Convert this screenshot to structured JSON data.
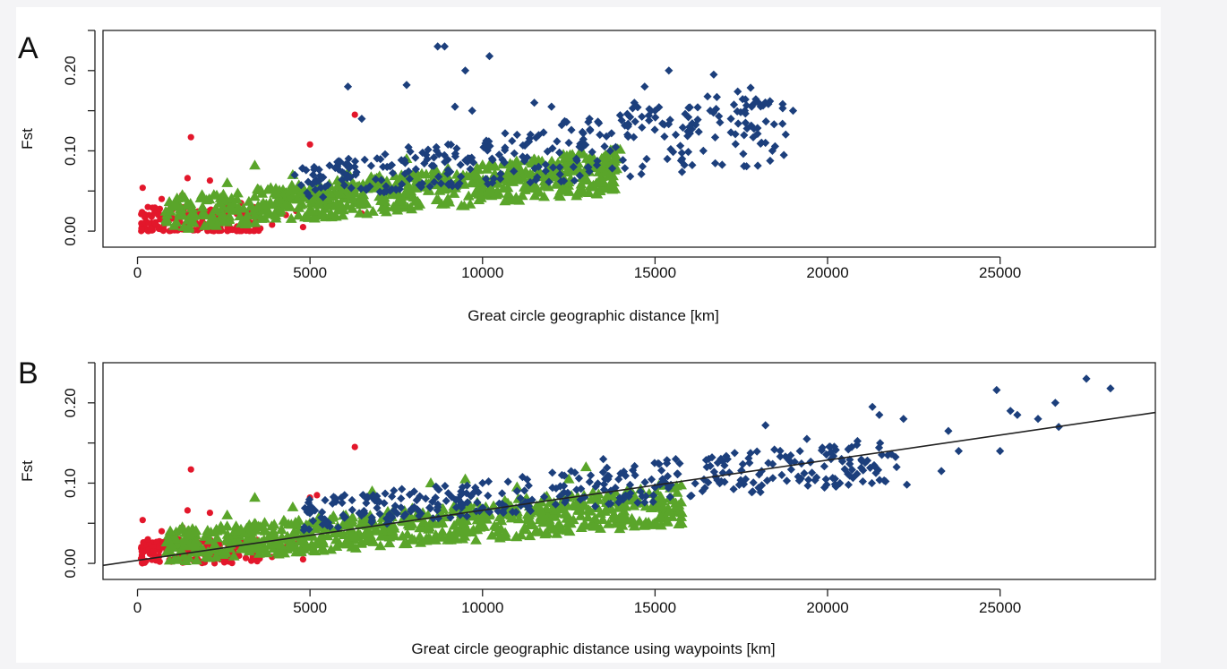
{
  "colors": {
    "red_group": "#e3172b",
    "green_group": "#5aa52a",
    "blue_group": "#1c3f7c",
    "regression_line": "#222222",
    "background": "#ffffff"
  },
  "chart_data": [
    {
      "type": "scatter",
      "panel_label": "A",
      "title": "",
      "xlabel": "Great circle geographic distance [km]",
      "ylabel": "Fst",
      "xlim": [
        -1000,
        29500
      ],
      "ylim": [
        -0.02,
        0.25
      ],
      "xticks": [
        0,
        5000,
        10000,
        15000,
        20000,
        25000
      ],
      "yticks": [
        0.0,
        0.1,
        0.2
      ],
      "xtick_labels": [
        "0",
        "5000",
        "10000",
        "15000",
        "20000",
        "25000"
      ],
      "ytick_labels": [
        "0.00",
        "0.10",
        "0.20"
      ],
      "grid": false,
      "regression": null,
      "series": [
        {
          "name": "red",
          "marker": "circle",
          "color": "#e3172b",
          "points": [
            [
              150,
              0.054
            ],
            [
              300,
              0.03
            ],
            [
              500,
              0.01
            ],
            [
              700,
              0.04
            ],
            [
              900,
              0.02
            ],
            [
              1100,
              0.035
            ],
            [
              1300,
              0.045
            ],
            [
              1450,
              0.066
            ],
            [
              1550,
              0.117
            ],
            [
              1700,
              0.01
            ],
            [
              2000,
              0.02
            ],
            [
              2100,
              0.063
            ],
            [
              2400,
              0.005
            ],
            [
              2600,
              0.03
            ],
            [
              3000,
              0.035
            ],
            [
              3300,
              0.025
            ],
            [
              3900,
              0.008
            ],
            [
              4300,
              0.02
            ],
            [
              4600,
              0.025
            ],
            [
              4800,
              0.005
            ],
            [
              5000,
              0.108
            ],
            [
              5600,
              0.03
            ],
            [
              6300,
              0.145
            ],
            [
              6500,
              0.022
            ]
          ],
          "cloud": {
            "count": 170,
            "x_range": [
              100,
              3600
            ],
            "y_range": [
              0.0,
              0.03
            ]
          }
        },
        {
          "name": "green",
          "marker": "triangle",
          "color": "#5aa52a",
          "points": [
            [
              1300,
              0.045
            ],
            [
              2600,
              0.06
            ],
            [
              3400,
              0.082
            ],
            [
              4500,
              0.07
            ],
            [
              5200,
              0.06
            ],
            [
              6100,
              0.073
            ],
            [
              7800,
              0.09
            ],
            [
              9000,
              0.078
            ],
            [
              10800,
              0.084
            ],
            [
              12000,
              0.07
            ],
            [
              13000,
              0.078
            ],
            [
              13800,
              0.088
            ]
          ],
          "cloud": {
            "count": 650,
            "x_range": [
              800,
              14000
            ],
            "y_min": [
              0.0,
              0.04
            ],
            "y_max": [
              0.04,
              0.09
            ],
            "y_slope": [
              0.0036,
              0.0048
            ]
          }
        },
        {
          "name": "blue",
          "marker": "diamond",
          "color": "#1c3f7c",
          "points": [
            [
              6100,
              0.18
            ],
            [
              6500,
              0.14
            ],
            [
              7800,
              0.182
            ],
            [
              8700,
              0.23
            ],
            [
              8900,
              0.23
            ],
            [
              9200,
              0.155
            ],
            [
              9500,
              0.2
            ],
            [
              9700,
              0.15
            ],
            [
              10200,
              0.218
            ],
            [
              11000,
              0.12
            ],
            [
              11500,
              0.16
            ],
            [
              12000,
              0.155
            ],
            [
              12500,
              0.11
            ],
            [
              13100,
              0.14
            ],
            [
              13400,
              0.12
            ],
            [
              13700,
              0.1
            ],
            [
              14200,
              0.12
            ],
            [
              14400,
              0.16
            ],
            [
              14700,
              0.18
            ],
            [
              15000,
              0.15
            ],
            [
              15400,
              0.2
            ],
            [
              15600,
              0.12
            ],
            [
              16000,
              0.13
            ],
            [
              16400,
              0.1
            ],
            [
              16600,
              0.15
            ],
            [
              16700,
              0.195
            ],
            [
              17200,
              0.14
            ],
            [
              17600,
              0.15
            ],
            [
              17800,
              0.155
            ],
            [
              18000,
              0.16
            ],
            [
              18200,
              0.11
            ],
            [
              18400,
              0.1
            ],
            [
              18700,
              0.153
            ],
            [
              19000,
              0.15
            ]
          ],
          "cloud": {
            "count": 320,
            "x_range": [
              4500,
              18800
            ],
            "y_min": [
              0.04,
              0.07
            ],
            "y_max": [
              0.08,
              0.16
            ],
            "y_slope": [
              0.0028,
              0.0075
            ]
          }
        }
      ]
    },
    {
      "type": "scatter",
      "panel_label": "B",
      "title": "",
      "xlabel": "Great circle geographic distance using waypoints [km]",
      "ylabel": "Fst",
      "xlim": [
        -1000,
        29500
      ],
      "ylim": [
        -0.02,
        0.25
      ],
      "xticks": [
        0,
        5000,
        10000,
        15000,
        20000,
        25000
      ],
      "yticks": [
        0.0,
        0.1,
        0.2
      ],
      "xtick_labels": [
        "0",
        "5000",
        "10000",
        "15000",
        "20000",
        "25000"
      ],
      "ytick_labels": [
        "0.00",
        "0.10",
        "0.20"
      ],
      "grid": false,
      "regression": {
        "x": [
          -1000,
          29500
        ],
        "y": [
          -0.0025,
          0.188
        ]
      },
      "series": [
        {
          "name": "red",
          "marker": "circle",
          "color": "#e3172b",
          "points": [
            [
              150,
              0.054
            ],
            [
              300,
              0.03
            ],
            [
              500,
              0.01
            ],
            [
              700,
              0.04
            ],
            [
              900,
              0.02
            ],
            [
              1100,
              0.035
            ],
            [
              1300,
              0.045
            ],
            [
              1450,
              0.066
            ],
            [
              1550,
              0.117
            ],
            [
              1700,
              0.01
            ],
            [
              2000,
              0.02
            ],
            [
              2100,
              0.063
            ],
            [
              2400,
              0.005
            ],
            [
              2600,
              0.03
            ],
            [
              3000,
              0.035
            ],
            [
              3300,
              0.025
            ],
            [
              3900,
              0.008
            ],
            [
              4300,
              0.02
            ],
            [
              4600,
              0.025
            ],
            [
              4800,
              0.005
            ],
            [
              5000,
              0.082
            ],
            [
              5200,
              0.085
            ],
            [
              5500,
              0.05
            ],
            [
              6300,
              0.145
            ]
          ],
          "cloud": {
            "count": 170,
            "x_range": [
              100,
              3600
            ],
            "y_min": [
              0.0,
              0.0
            ],
            "y_max": [
              0.03,
              0.03
            ],
            "y_slope": [
              0.0,
              0.0
            ]
          }
        },
        {
          "name": "green",
          "marker": "triangle",
          "color": "#5aa52a",
          "points": [
            [
              1300,
              0.045
            ],
            [
              2600,
              0.06
            ],
            [
              3400,
              0.082
            ],
            [
              4500,
              0.07
            ],
            [
              6800,
              0.09
            ],
            [
              8500,
              0.1
            ],
            [
              9500,
              0.105
            ],
            [
              11000,
              0.095
            ],
            [
              12500,
              0.105
            ],
            [
              13000,
              0.12
            ],
            [
              14200,
              0.085
            ],
            [
              15600,
              0.075
            ]
          ],
          "cloud": {
            "count": 650,
            "x_range": [
              800,
              15800
            ],
            "y_min": [
              0.0,
              0.04
            ],
            "y_max": [
              0.04,
              0.09
            ],
            "y_slope": [
              0.0032,
              0.004
            ]
          }
        },
        {
          "name": "blue",
          "marker": "diamond",
          "color": "#1c3f7c",
          "points": [
            [
              5000,
              0.07
            ],
            [
              6000,
              0.085
            ],
            [
              8700,
              0.07
            ],
            [
              9300,
              0.08
            ],
            [
              10000,
              0.1
            ],
            [
              11000,
              0.09
            ],
            [
              12300,
              0.11
            ],
            [
              13500,
              0.13
            ],
            [
              14000,
              0.112
            ],
            [
              15200,
              0.1
            ],
            [
              15600,
              0.13
            ],
            [
              16500,
              0.12
            ],
            [
              17100,
              0.13
            ],
            [
              18200,
              0.172
            ],
            [
              19400,
              0.155
            ],
            [
              20100,
              0.13
            ],
            [
              20700,
              0.145
            ],
            [
              21300,
              0.195
            ],
            [
              21500,
              0.185
            ],
            [
              22000,
              0.12
            ],
            [
              22200,
              0.18
            ],
            [
              22300,
              0.098
            ],
            [
              23300,
              0.115
            ],
            [
              23500,
              0.165
            ],
            [
              23800,
              0.14
            ],
            [
              24900,
              0.216
            ],
            [
              25000,
              0.14
            ],
            [
              25300,
              0.19
            ],
            [
              25500,
              0.185
            ],
            [
              26100,
              0.18
            ],
            [
              26600,
              0.2
            ],
            [
              27500,
              0.23
            ],
            [
              28200,
              0.218
            ],
            [
              26700,
              0.17
            ]
          ],
          "cloud": {
            "count": 360,
            "x_range": [
              4800,
              22000
            ],
            "y_min": [
              0.04,
              0.08
            ],
            "y_max": [
              0.08,
              0.13
            ],
            "y_slope": [
              0.0036,
              0.0047
            ]
          }
        }
      ]
    }
  ]
}
